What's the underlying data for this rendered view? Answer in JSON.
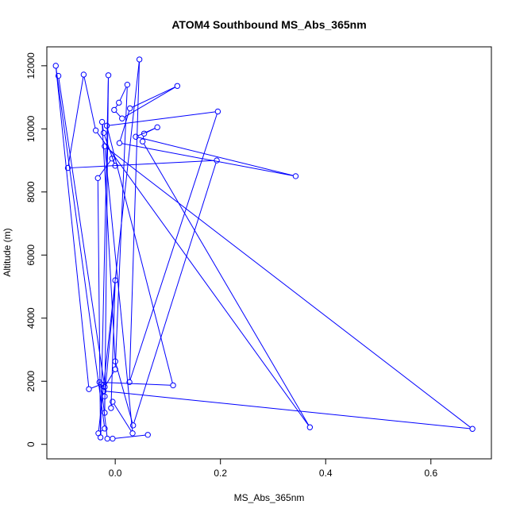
{
  "chart_data": {
    "type": "line",
    "title": "ATOM4 Southbound MS_Abs_365nm",
    "xlabel": "MS_Abs_365nm",
    "ylabel": "Altitude (m)",
    "xlim": [
      -0.13,
      0.715
    ],
    "ylim": [
      -460,
      12600
    ],
    "x_ticks": [
      0.0,
      0.2,
      0.4,
      0.6
    ],
    "x_tick_labels": [
      "0.0",
      "0.2",
      "0.4",
      "0.6"
    ],
    "y_ticks": [
      0,
      2000,
      4000,
      6000,
      8000,
      10000,
      12000
    ],
    "y_tick_labels": [
      "0",
      "2000",
      "4000",
      "6000",
      "8000",
      "10000",
      "12000"
    ],
    "grid": false,
    "colors": {
      "series": "#0000ff",
      "axis": "#000000"
    },
    "series": [
      {
        "marker": "open-circle",
        "points": [
          {
            "x": -0.108,
            "y": 11680
          },
          {
            "x": -0.02,
            "y": 1820
          },
          {
            "x": 0.0,
            "y": 2380
          },
          {
            "x": 0.023,
            "y": 11400
          },
          {
            "x": 0.007,
            "y": 10830
          },
          {
            "x": -0.002,
            "y": 10600
          },
          {
            "x": 0.013,
            "y": 10330
          },
          {
            "x": 0.118,
            "y": 11360
          },
          {
            "x": 0.028,
            "y": 10650
          },
          {
            "x": 0.008,
            "y": 9550
          },
          {
            "x": 0.343,
            "y": 8500
          },
          {
            "x": 0.039,
            "y": 9750
          },
          {
            "x": 0.08,
            "y": 10050
          },
          {
            "x": 0.055,
            "y": 9850
          },
          {
            "x": 0.052,
            "y": 9600
          },
          {
            "x": 0.37,
            "y": 540
          },
          {
            "x": -0.037,
            "y": 9950
          },
          {
            "x": -0.06,
            "y": 11720
          },
          {
            "x": -0.09,
            "y": 8760
          },
          {
            "x": 0.193,
            "y": 9000
          },
          {
            "x": 0.034,
            "y": 600
          },
          {
            "x": 0.0,
            "y": 2630
          },
          {
            "x": -0.025,
            "y": 10220
          },
          {
            "x": -0.022,
            "y": 9870
          },
          {
            "x": 0.0,
            "y": 8830
          },
          {
            "x": -0.006,
            "y": 9060
          },
          {
            "x": -0.033,
            "y": 8440
          },
          {
            "x": -0.028,
            "y": 220
          },
          {
            "x": -0.013,
            "y": 11700
          },
          {
            "x": -0.02,
            "y": 1000
          },
          {
            "x": -0.02,
            "y": 1520
          },
          {
            "x": 0.0,
            "y": 5200
          },
          {
            "x": -0.008,
            "y": 1150
          },
          {
            "x": -0.005,
            "y": 1350
          },
          {
            "x": 0.033,
            "y": 350
          },
          {
            "x": -0.02,
            "y": 9450
          },
          {
            "x": 0.679,
            "y": 490
          },
          {
            "x": -0.022,
            "y": 1690
          },
          {
            "x": -0.03,
            "y": 1970
          },
          {
            "x": 0.11,
            "y": 1870
          },
          {
            "x": -0.016,
            "y": 10100
          },
          {
            "x": 0.195,
            "y": 10550
          },
          {
            "x": 0.027,
            "y": 1970
          },
          {
            "x": 0.046,
            "y": 12200
          },
          {
            "x": -0.032,
            "y": 350
          },
          {
            "x": -0.02,
            "y": 500
          },
          {
            "x": -0.113,
            "y": 12000
          },
          {
            "x": -0.05,
            "y": 1750
          },
          {
            "x": -0.027,
            "y": 1900
          },
          {
            "x": -0.015,
            "y": 180
          },
          {
            "x": -0.005,
            "y": 180
          },
          {
            "x": 0.062,
            "y": 300
          }
        ]
      }
    ]
  }
}
